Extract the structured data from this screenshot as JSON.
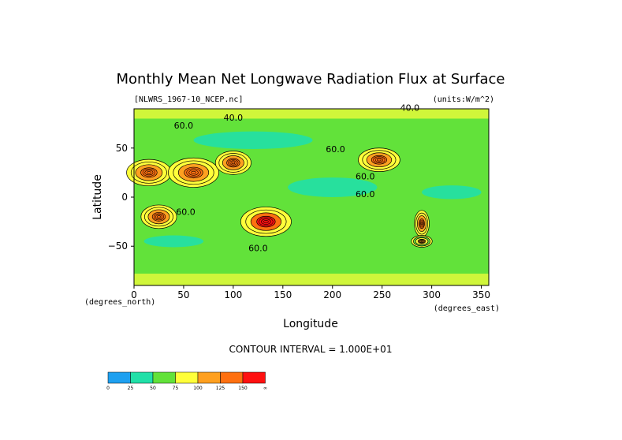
{
  "chart_data": {
    "type": "heatmap",
    "title": "Monthly Mean Net Longwave Radiation Flux at Surface",
    "file_label": "[NLWRS_1967-10_NCEP.nc]",
    "units_label": "(units:W/m^2)",
    "xlabel": "Longitude",
    "ylabel": "Latitude",
    "x_unit_label": "(degrees_east)",
    "y_unit_label": "(degrees_north)",
    "contour_interval_label": "CONTOUR INTERVAL = 1.000E+01",
    "xlim": [
      0,
      357.5
    ],
    "ylim": [
      -90,
      90
    ],
    "x_ticks": [
      0,
      50,
      100,
      150,
      200,
      250,
      300,
      350
    ],
    "y_ticks": [
      50,
      0,
      -50
    ],
    "y_tick_labels": [
      "50",
      "0",
      "−50"
    ],
    "contour_labels": [
      {
        "text": "40.0",
        "lon": 100,
        "lat": 78
      },
      {
        "text": "60.0",
        "lon": 50,
        "lat": 70
      },
      {
        "text": "40.0",
        "lon": 278,
        "lat": 88
      },
      {
        "text": "60.0",
        "lon": 203,
        "lat": 46
      },
      {
        "text": "60.0",
        "lon": 233,
        "lat": 18
      },
      {
        "text": "60.0",
        "lon": 233,
        "lat": 0
      },
      {
        "text": "60.0",
        "lon": 52,
        "lat": -18
      },
      {
        "text": "60.0",
        "lon": 125,
        "lat": -55
      }
    ],
    "colorbar": {
      "levels": [
        "0",
        "25",
        "50",
        "75",
        "100",
        "125",
        "150",
        "∞"
      ],
      "colors": [
        "#1ea0f0",
        "#21e0a8",
        "#62e23a",
        "#ffff3a",
        "#ffa020",
        "#ff7010",
        "#ff1010"
      ]
    },
    "features": [
      {
        "lon": 15,
        "lat": 25,
        "rx": 15,
        "ry": 9,
        "level": 4
      },
      {
        "lon": 60,
        "lat": 25,
        "rx": 17,
        "ry": 10,
        "level": 4
      },
      {
        "lon": 100,
        "lat": 35,
        "rx": 12,
        "ry": 8,
        "level": 4
      },
      {
        "lon": 25,
        "lat": -20,
        "rx": 12,
        "ry": 8,
        "level": 4
      },
      {
        "lon": 133,
        "lat": -25,
        "rx": 17,
        "ry": 10,
        "level": 5
      },
      {
        "lon": 247,
        "lat": 38,
        "rx": 14,
        "ry": 8,
        "level": 4
      },
      {
        "lon": 290,
        "lat": -27,
        "rx": 5,
        "ry": 9,
        "level": 4
      },
      {
        "lon": 290,
        "lat": -45,
        "rx": 7,
        "ry": 4,
        "level": 3
      }
    ]
  }
}
